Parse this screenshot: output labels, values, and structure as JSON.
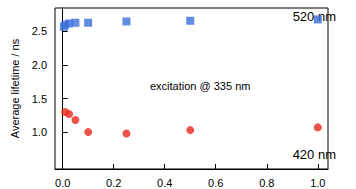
{
  "chart_data": {
    "type": "scatter",
    "y_label": "Average lifetime / ns",
    "annotations": [
      "520 nm",
      "420 nm",
      "excitation @ 335 nm"
    ],
    "series": [
      {
        "name": "520 nm",
        "color": "#3a6fd8",
        "marker": "square",
        "x": [
          0.005,
          0.01,
          0.025,
          0.05,
          0.1,
          0.25,
          0.5,
          1.0
        ],
        "values": [
          2.57,
          2.6,
          2.62,
          2.63,
          2.63,
          2.65,
          2.66,
          2.68
        ]
      },
      {
        "name": "420 nm",
        "color": "#e8291c",
        "marker": "circle",
        "x": [
          0.01,
          0.025,
          0.05,
          0.1,
          0.25,
          0.5,
          1.0
        ],
        "values": [
          1.3,
          1.27,
          1.18,
          1.0,
          0.98,
          1.03,
          1.07
        ]
      }
    ],
    "xlim": [
      -0.03,
      1.04
    ],
    "xticks": [
      {
        "value": 0,
        "label": "0.0"
      },
      0.2,
      0.4,
      0.6,
      0.8,
      {
        "value": 1,
        "label": "1.0"
      }
    ],
    "ylim": [
      0.45,
      2.85
    ],
    "yticks": [
      {
        "value": 1,
        "label": "1.0"
      },
      1.5,
      {
        "value": 2,
        "label": "2.0"
      },
      2.5
    ],
    "grid": false
  }
}
